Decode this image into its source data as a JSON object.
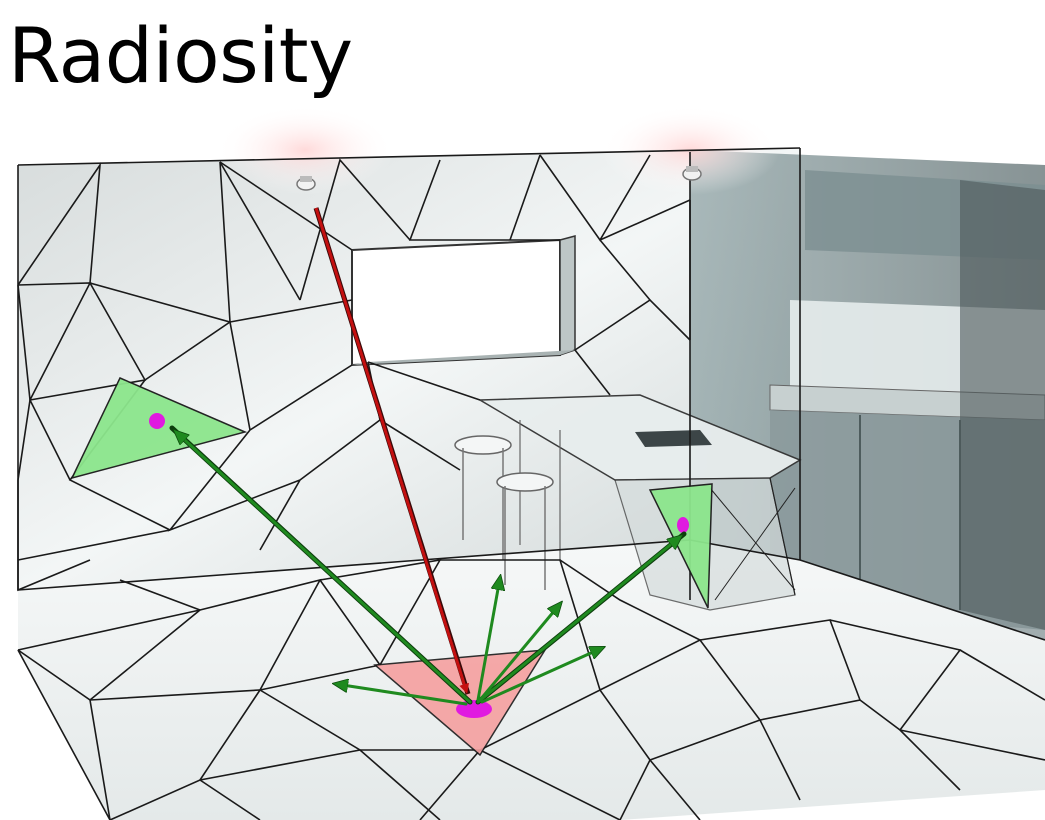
{
  "slide": {
    "title": "Radiosity"
  },
  "colors": {
    "emitter_patch": "#f5a0a0",
    "receiver_patch": "#8ce68c",
    "patch_center": "#e01ae0",
    "incoming_ray": "#c41010",
    "outgoing_ray": "#1f8a1f",
    "mesh_line": "#1a1a1a"
  },
  "icons": [
    "ceiling-light-icon",
    "ceiling-light-icon"
  ]
}
